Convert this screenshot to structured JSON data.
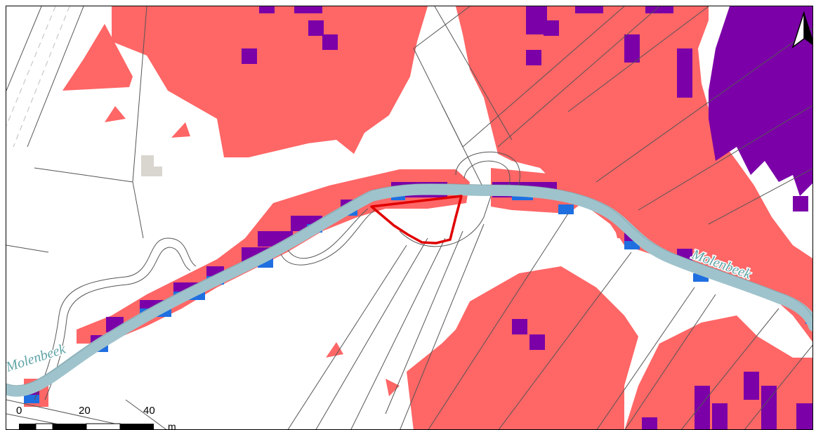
{
  "map": {
    "watercourse_labels": [
      "Molenbeek",
      "Molenbeek"
    ],
    "scale_bar": {
      "ticks": [
        "0",
        "20",
        "40"
      ],
      "unit": "m"
    },
    "north_arrow": "north-arrow-icon",
    "colors": {
      "zone_light": "#ff6666",
      "zone_dark": "#7b00a8",
      "zone_blue": "#1f6fe0",
      "stream": "#9fc3cc",
      "stream_label": "#5ea3a6",
      "highlight_outline": "#e00000",
      "parcel_lines": "#555555",
      "building": "#d9d6cf"
    }
  }
}
